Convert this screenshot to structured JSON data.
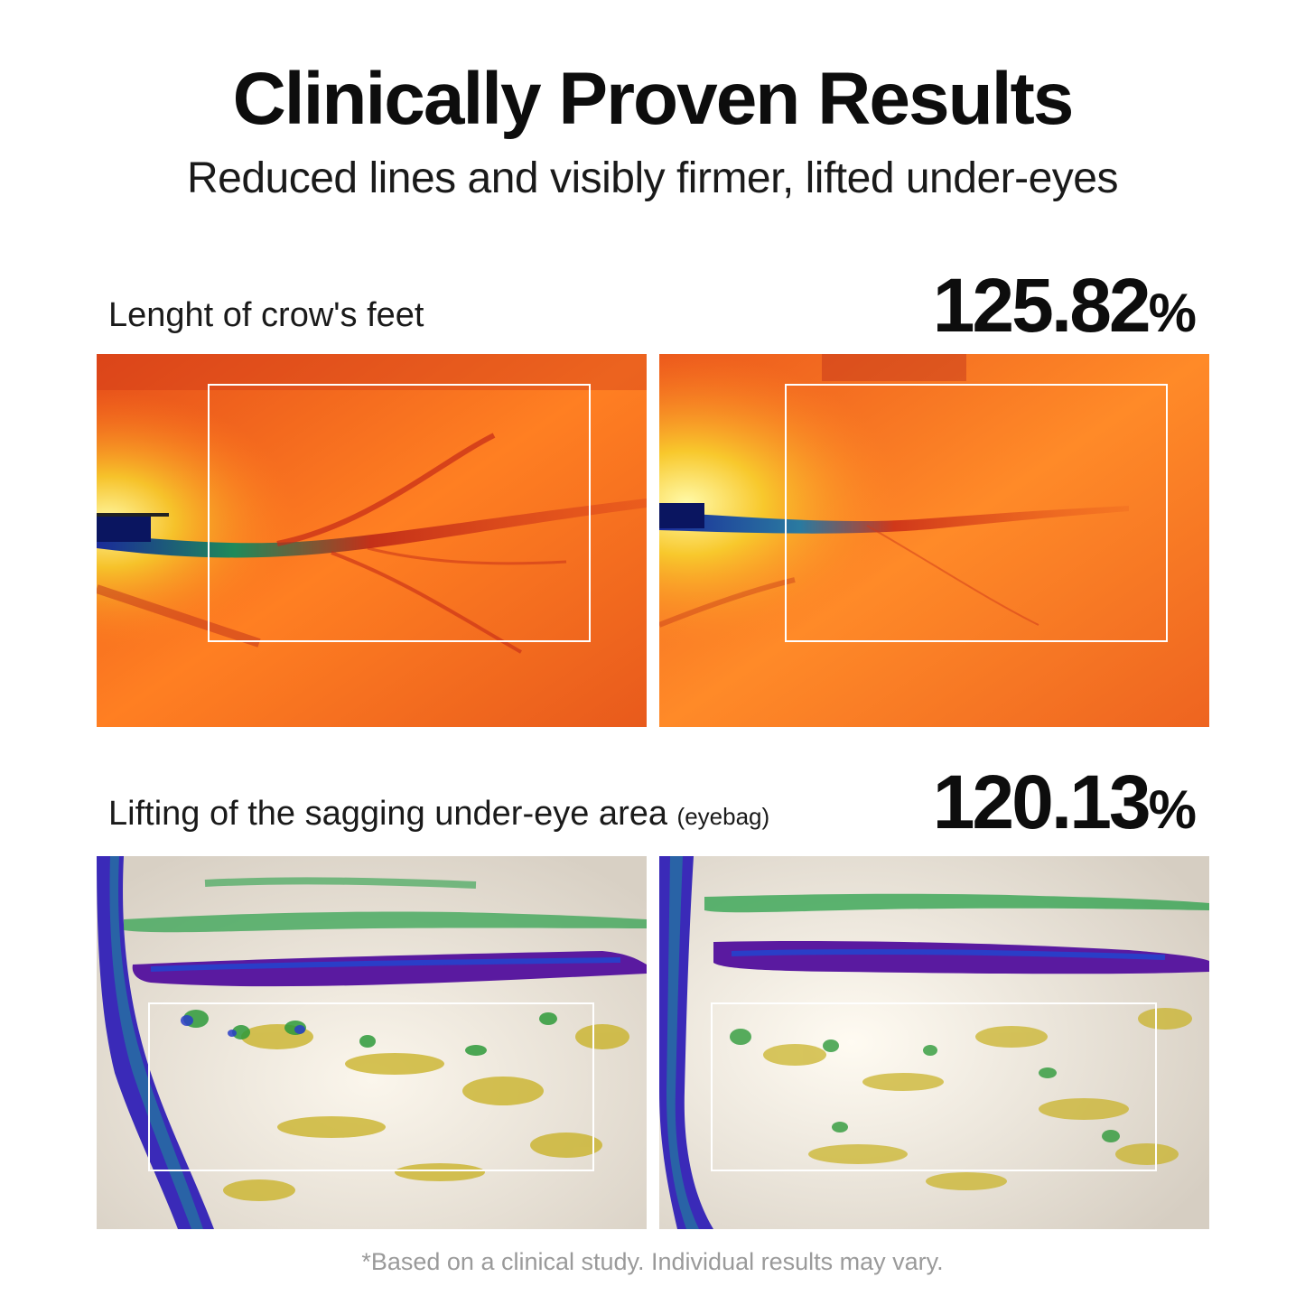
{
  "header": {
    "title": "Clinically Proven Results",
    "subtitle": "Reduced lines and visibly firmer, lifted under-eyes"
  },
  "metrics": [
    {
      "label": "Lenght of crow's feet",
      "label_note": "",
      "value": "125.82",
      "unit": "%",
      "image_type": "thermal crow's feet skin analysis",
      "colors": [
        "#e8501a",
        "#ff7a1f",
        "#d2331a",
        "#f4e21a",
        "#2a56c4"
      ]
    },
    {
      "label": "Lifting of the sagging under-eye area",
      "label_note": "(eyebag)",
      "value": "120.13",
      "unit": "%",
      "image_type": "topographic under-eye skin analysis",
      "colors": [
        "#efe9df",
        "#c8b020",
        "#2e9a3a",
        "#2a3ec8",
        "#6a1a9a"
      ]
    }
  ],
  "footnote": "*Based on a clinical study. Individual results may vary."
}
